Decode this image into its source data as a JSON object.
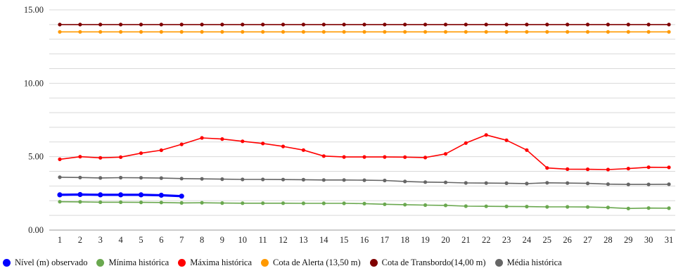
{
  "chart_data": {
    "type": "line",
    "title": "",
    "xlabel": "",
    "ylabel": "",
    "ylim": [
      0,
      15
    ],
    "y_ticks": [
      "0.00",
      "5.00",
      "10.00",
      "15.00"
    ],
    "grid": "horizontal",
    "legend_position": "bottom",
    "categories": [
      "1",
      "2",
      "3",
      "4",
      "5",
      "6",
      "7",
      "8",
      "9",
      "10",
      "11",
      "12",
      "13",
      "14",
      "15",
      "16",
      "17",
      "18",
      "19",
      "20",
      "21",
      "22",
      "23",
      "24",
      "25",
      "26",
      "27",
      "28",
      "29",
      "30",
      "31"
    ],
    "series": [
      {
        "name": "Nível (m) observado",
        "color": "#0000ff",
        "values": [
          2.4,
          2.42,
          2.4,
          2.4,
          2.4,
          2.37,
          2.31,
          null,
          null,
          null,
          null,
          null,
          null,
          null,
          null,
          null,
          null,
          null,
          null,
          null,
          null,
          null,
          null,
          null,
          null,
          null,
          null,
          null,
          null,
          null,
          null
        ]
      },
      {
        "name": "Mínima histórica",
        "color": "#6aa84f",
        "values": [
          1.93,
          1.92,
          1.9,
          1.9,
          1.89,
          1.88,
          1.85,
          1.86,
          1.84,
          1.83,
          1.83,
          1.83,
          1.82,
          1.82,
          1.82,
          1.8,
          1.76,
          1.73,
          1.7,
          1.68,
          1.63,
          1.62,
          1.61,
          1.6,
          1.58,
          1.58,
          1.57,
          1.54,
          1.47,
          1.5,
          1.49
        ]
      },
      {
        "name": "Máxima histórica",
        "color": "#ff0000",
        "values": [
          4.82,
          5.0,
          4.92,
          4.97,
          5.24,
          5.44,
          5.84,
          6.28,
          6.2,
          6.05,
          5.9,
          5.7,
          5.45,
          5.04,
          4.98,
          4.98,
          4.98,
          4.97,
          4.94,
          5.19,
          5.93,
          6.48,
          6.12,
          5.45,
          4.23,
          4.15,
          4.14,
          4.12,
          4.19,
          4.28,
          4.27
        ]
      },
      {
        "name": "Cota de Alerta (13,50 m)",
        "color": "#ff9900",
        "values": [
          13.5,
          13.5,
          13.5,
          13.5,
          13.5,
          13.5,
          13.5,
          13.5,
          13.5,
          13.5,
          13.5,
          13.5,
          13.5,
          13.5,
          13.5,
          13.5,
          13.5,
          13.5,
          13.5,
          13.5,
          13.5,
          13.5,
          13.5,
          13.5,
          13.5,
          13.5,
          13.5,
          13.5,
          13.5,
          13.5,
          13.5
        ]
      },
      {
        "name": "Cota de Transbordo(14,00 m)",
        "color": "#7f0000",
        "values": [
          14.0,
          14.0,
          14.0,
          14.0,
          14.0,
          14.0,
          14.0,
          14.0,
          14.0,
          14.0,
          14.0,
          14.0,
          14.0,
          14.0,
          14.0,
          14.0,
          14.0,
          14.0,
          14.0,
          14.0,
          14.0,
          14.0,
          14.0,
          14.0,
          14.0,
          14.0,
          14.0,
          14.0,
          14.0,
          14.0,
          14.0
        ]
      },
      {
        "name": "Média histórica",
        "color": "#666666",
        "values": [
          3.6,
          3.58,
          3.55,
          3.57,
          3.56,
          3.54,
          3.51,
          3.49,
          3.47,
          3.45,
          3.45,
          3.44,
          3.43,
          3.41,
          3.41,
          3.4,
          3.38,
          3.31,
          3.27,
          3.25,
          3.21,
          3.2,
          3.19,
          3.17,
          3.22,
          3.2,
          3.18,
          3.13,
          3.11,
          3.11,
          3.12
        ]
      }
    ]
  }
}
